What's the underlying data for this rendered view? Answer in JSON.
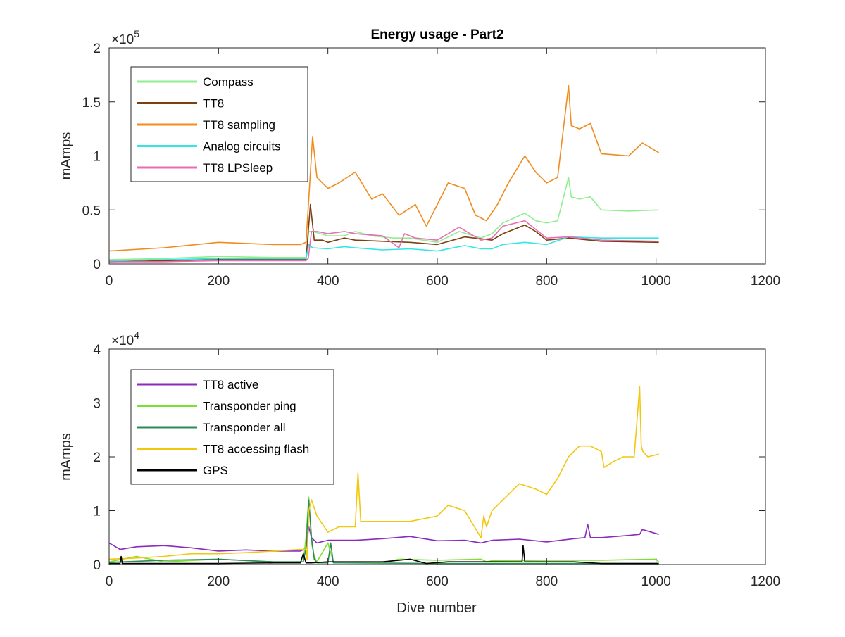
{
  "figure_title": "Energy usage - Part2",
  "chart_data": [
    {
      "type": "line",
      "title": "Energy usage - Part2",
      "xlabel": "",
      "ylabel": "mAmps",
      "xlim": [
        0,
        1200
      ],
      "ylim": [
        0,
        200000
      ],
      "exponent_label": "×10",
      "exponent_power": "5",
      "x_ticks": [
        0,
        200,
        400,
        600,
        800,
        1000,
        1200
      ],
      "x_tick_labels": [
        "0",
        "200",
        "400",
        "600",
        "800",
        "1000",
        "1200"
      ],
      "y_ticks": [
        0,
        50000,
        100000,
        150000,
        200000
      ],
      "y_tick_labels": [
        "0",
        "0.5",
        "1",
        "1.5",
        "2"
      ],
      "grid": false,
      "legend_position": "top-left",
      "series": [
        {
          "name": "Compass",
          "color": "#90EE90",
          "x": [
            0,
            100,
            200,
            300,
            360,
            365,
            372,
            400,
            430,
            450,
            480,
            520,
            550,
            600,
            640,
            680,
            700,
            720,
            760,
            780,
            800,
            820,
            840,
            845,
            860,
            880,
            900,
            950,
            1005
          ],
          "y": [
            4000,
            5000,
            7000,
            6000,
            6000,
            30000,
            30000,
            26000,
            26000,
            30000,
            26000,
            24000,
            24000,
            20000,
            30000,
            24000,
            28000,
            38000,
            47000,
            40000,
            38000,
            40000,
            80000,
            62000,
            60000,
            62000,
            50000,
            49000,
            50000
          ]
        },
        {
          "name": "TT8",
          "color": "#7B3F10",
          "x": [
            0,
            100,
            200,
            300,
            360,
            368,
            375,
            390,
            400,
            430,
            450,
            500,
            550,
            600,
            650,
            700,
            720,
            760,
            780,
            800,
            840,
            900,
            1005
          ],
          "y": [
            2000,
            3000,
            4000,
            4000,
            4000,
            55000,
            22000,
            22000,
            20000,
            24000,
            22000,
            21000,
            20000,
            18000,
            25000,
            22000,
            28000,
            36000,
            30000,
            22000,
            24000,
            21000,
            20000
          ]
        },
        {
          "name": "TT8 sampling",
          "color": "#F08C1E",
          "x": [
            0,
            100,
            200,
            300,
            350,
            360,
            365,
            372,
            380,
            400,
            420,
            450,
            480,
            500,
            530,
            560,
            580,
            600,
            620,
            650,
            670,
            690,
            710,
            730,
            760,
            780,
            800,
            820,
            840,
            845,
            860,
            880,
            900,
            950,
            975,
            1005
          ],
          "y": [
            12000,
            15000,
            20000,
            18000,
            18000,
            20000,
            60000,
            118000,
            80000,
            70000,
            75000,
            85000,
            60000,
            65000,
            45000,
            55000,
            35000,
            55000,
            75000,
            70000,
            45000,
            40000,
            55000,
            75000,
            100000,
            85000,
            75000,
            80000,
            165000,
            128000,
            125000,
            130000,
            102000,
            100000,
            112000,
            103000
          ]
        },
        {
          "name": "Analog circuits",
          "color": "#33E6E6",
          "x": [
            0,
            100,
            200,
            300,
            360,
            365,
            372,
            400,
            430,
            450,
            500,
            550,
            600,
            650,
            680,
            700,
            720,
            760,
            800,
            840,
            900,
            1005
          ],
          "y": [
            3000,
            4000,
            5000,
            5000,
            5000,
            18000,
            15000,
            14000,
            16000,
            15000,
            13000,
            14000,
            12000,
            17000,
            14000,
            14000,
            18000,
            20000,
            18000,
            25000,
            24000,
            24000
          ]
        },
        {
          "name": "TT8 LPSleep",
          "color": "#E86EB4",
          "x": [
            0,
            100,
            200,
            300,
            360,
            364,
            370,
            380,
            400,
            430,
            450,
            500,
            530,
            540,
            560,
            600,
            640,
            680,
            700,
            720,
            760,
            780,
            800,
            840,
            900,
            1005
          ],
          "y": [
            2000,
            2000,
            3000,
            3000,
            3000,
            5000,
            30000,
            30000,
            28000,
            30000,
            28000,
            26000,
            15000,
            28000,
            24000,
            22000,
            34000,
            22000,
            24000,
            35000,
            40000,
            32000,
            24000,
            25000,
            22000,
            21000
          ]
        }
      ]
    },
    {
      "type": "line",
      "title": "",
      "xlabel": "Dive number",
      "ylabel": "mAmps",
      "xlim": [
        0,
        1200
      ],
      "ylim": [
        0,
        40000
      ],
      "exponent_label": "×10",
      "exponent_power": "4",
      "x_ticks": [
        0,
        200,
        400,
        600,
        800,
        1000,
        1200
      ],
      "x_tick_labels": [
        "0",
        "200",
        "400",
        "600",
        "800",
        "1000",
        "1200"
      ],
      "y_ticks": [
        0,
        10000,
        20000,
        30000,
        40000
      ],
      "y_tick_labels": [
        "0",
        "1",
        "2",
        "3",
        "4"
      ],
      "grid": false,
      "legend_position": "top-left",
      "series": [
        {
          "name": "TT8 active",
          "color": "#8A2BBE",
          "x": [
            0,
            20,
            50,
            100,
            150,
            200,
            250,
            300,
            350,
            360,
            365,
            370,
            380,
            400,
            450,
            500,
            550,
            600,
            650,
            680,
            700,
            750,
            800,
            850,
            870,
            875,
            880,
            900,
            950,
            970,
            975,
            1005
          ],
          "y": [
            4000,
            2800,
            3300,
            3500,
            3100,
            2500,
            2700,
            2500,
            2500,
            3000,
            7000,
            5000,
            4000,
            4500,
            4500,
            4800,
            5200,
            4400,
            4500,
            4000,
            4500,
            4700,
            4200,
            4800,
            5000,
            7500,
            5000,
            5000,
            5400,
            5600,
            6500,
            5600
          ]
        },
        {
          "name": "Transponder ping",
          "color": "#7CE12E",
          "x": [
            0,
            50,
            100,
            200,
            300,
            355,
            360,
            365,
            370,
            375,
            380,
            400,
            410,
            420,
            500,
            530,
            600,
            680,
            690,
            700,
            800,
            850,
            900,
            1000,
            1005
          ],
          "y": [
            500,
            1500,
            500,
            1000,
            500,
            500,
            5000,
            12500,
            4000,
            1500,
            500,
            4000,
            500,
            300,
            300,
            1000,
            800,
            1000,
            500,
            700,
            800,
            800,
            800,
            1000,
            500
          ]
        },
        {
          "name": "Transponder all",
          "color": "#2E8B57",
          "x": [
            0,
            100,
            200,
            300,
            355,
            360,
            365,
            370,
            375,
            380,
            400,
            405,
            410,
            420,
            600,
            800,
            1005
          ],
          "y": [
            400,
            800,
            1000,
            500,
            500,
            3000,
            12000,
            5000,
            1000,
            300,
            300,
            4000,
            300,
            300,
            200,
            200,
            200
          ]
        },
        {
          "name": "TT8 accessing flash",
          "color": "#F2C80F",
          "x": [
            0,
            50,
            100,
            150,
            200,
            250,
            300,
            350,
            360,
            362,
            365,
            370,
            380,
            400,
            420,
            450,
            455,
            460,
            500,
            550,
            600,
            620,
            650,
            680,
            685,
            690,
            700,
            720,
            750,
            780,
            800,
            820,
            840,
            860,
            880,
            900,
            905,
            920,
            940,
            960,
            970,
            973,
            976,
            985,
            1005
          ],
          "y": [
            1000,
            1200,
            1500,
            2000,
            2000,
            2200,
            2500,
            2800,
            2800,
            1000,
            10000,
            12000,
            9000,
            6000,
            7000,
            7000,
            17000,
            8000,
            8000,
            8000,
            9000,
            11000,
            10000,
            5000,
            9000,
            7000,
            10000,
            12000,
            15000,
            14000,
            13000,
            16000,
            20000,
            22000,
            22000,
            21000,
            18000,
            19000,
            20000,
            20000,
            33000,
            22000,
            21000,
            20000,
            20500
          ]
        },
        {
          "name": "GPS",
          "color": "#000000",
          "x": [
            0,
            20,
            22,
            24,
            100,
            200,
            300,
            350,
            355,
            360,
            365,
            370,
            400,
            500,
            550,
            580,
            620,
            700,
            755,
            757,
            760,
            800,
            850,
            900,
            1005
          ],
          "y": [
            200,
            200,
            1500,
            200,
            200,
            200,
            300,
            300,
            2000,
            300,
            300,
            300,
            500,
            500,
            1000,
            200,
            500,
            500,
            500,
            3500,
            500,
            500,
            500,
            200,
            200
          ]
        }
      ]
    }
  ]
}
